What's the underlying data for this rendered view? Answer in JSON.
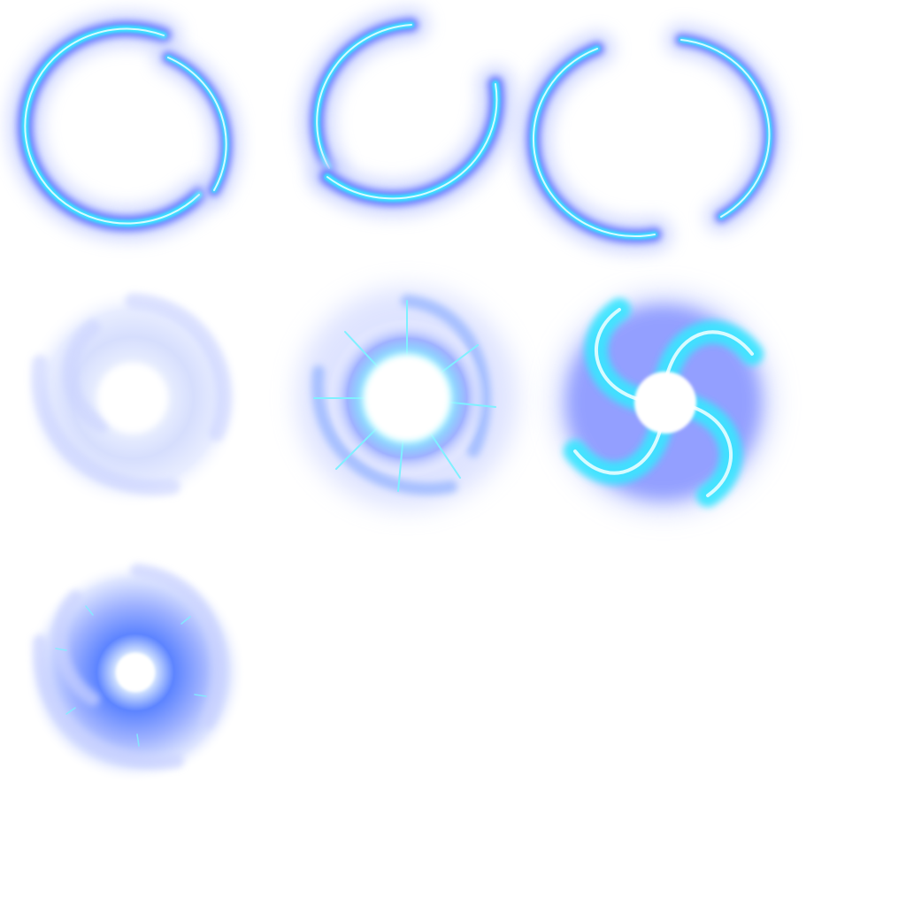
{
  "sprite_sheet": {
    "background": "#ffffff",
    "palette": {
      "glow": "#5a6cff",
      "halo": "#c9d2ff",
      "cyan": "#38e6ff",
      "core": "#ffffff",
      "mist": "#dfe6ff"
    },
    "frames": [
      {
        "icon": "energy-ring-icon"
      },
      {
        "icon": "energy-ring-icon"
      },
      {
        "icon": "energy-ring-icon"
      },
      {
        "icon": "mist-vortex-icon"
      },
      {
        "icon": "spark-burst-icon"
      },
      {
        "icon": "swirl-vortex-icon"
      },
      {
        "icon": "mist-vortex-icon"
      }
    ]
  }
}
